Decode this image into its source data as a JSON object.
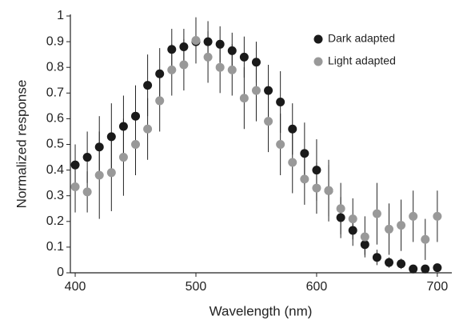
{
  "chart_data": {
    "type": "scatter",
    "xlabel": "Wavelength (nm)",
    "ylabel": "Normalized response",
    "x": [
      400,
      410,
      420,
      430,
      440,
      450,
      460,
      470,
      480,
      490,
      500,
      510,
      520,
      530,
      540,
      550,
      560,
      570,
      580,
      590,
      600,
      610,
      620,
      630,
      640,
      650,
      660,
      670,
      680,
      690,
      700
    ],
    "series": [
      {
        "name": "Dark adapted",
        "color": "#1a1a1a",
        "values": [
          0.42,
          0.45,
          0.49,
          0.53,
          0.57,
          0.61,
          0.73,
          0.775,
          0.87,
          0.88,
          0.9,
          0.9,
          0.89,
          0.865,
          0.84,
          0.82,
          0.71,
          0.665,
          0.56,
          0.465,
          0.4,
          0.32,
          0.215,
          0.165,
          0.11,
          0.06,
          0.04,
          0.035,
          0.015,
          0.015,
          0.02
        ],
        "errors": [
          0.08,
          0.1,
          0.12,
          0.13,
          0.12,
          0.12,
          0.12,
          0.1,
          0.08,
          0.07,
          0.08,
          0.08,
          0.07,
          0.07,
          0.08,
          0.08,
          0.1,
          0.12,
          0.1,
          0.12,
          0.12,
          0.1,
          0.08,
          0.06,
          0.04,
          0.03,
          0.02,
          0.02,
          0.01,
          0.01,
          0.01
        ]
      },
      {
        "name": "Light adapted",
        "color": "#999999",
        "values": [
          0.335,
          0.315,
          0.38,
          0.39,
          0.45,
          0.5,
          0.56,
          0.67,
          0.79,
          0.81,
          0.905,
          0.84,
          0.8,
          0.79,
          0.68,
          0.71,
          0.59,
          0.5,
          0.43,
          0.365,
          0.33,
          0.32,
          0.25,
          0.21,
          0.14,
          0.23,
          0.17,
          0.185,
          0.22,
          0.13,
          0.22
        ],
        "errors": [
          0.1,
          0.08,
          0.17,
          0.15,
          0.15,
          0.12,
          0.12,
          0.12,
          0.1,
          0.1,
          0.09,
          0.1,
          0.1,
          0.1,
          0.12,
          0.12,
          0.12,
          0.12,
          0.12,
          0.1,
          0.1,
          0.12,
          0.1,
          0.08,
          0.08,
          0.12,
          0.1,
          0.1,
          0.1,
          0.08,
          0.1
        ]
      }
    ],
    "xlim": [
      396,
      712
    ],
    "xticks": [
      400,
      500,
      600,
      700
    ],
    "ylim": [
      0,
      1
    ],
    "yticks": [
      0,
      0.1,
      0.2,
      0.3,
      0.4,
      0.5,
      0.6,
      0.7,
      0.8,
      0.9,
      1
    ],
    "grid": false
  }
}
